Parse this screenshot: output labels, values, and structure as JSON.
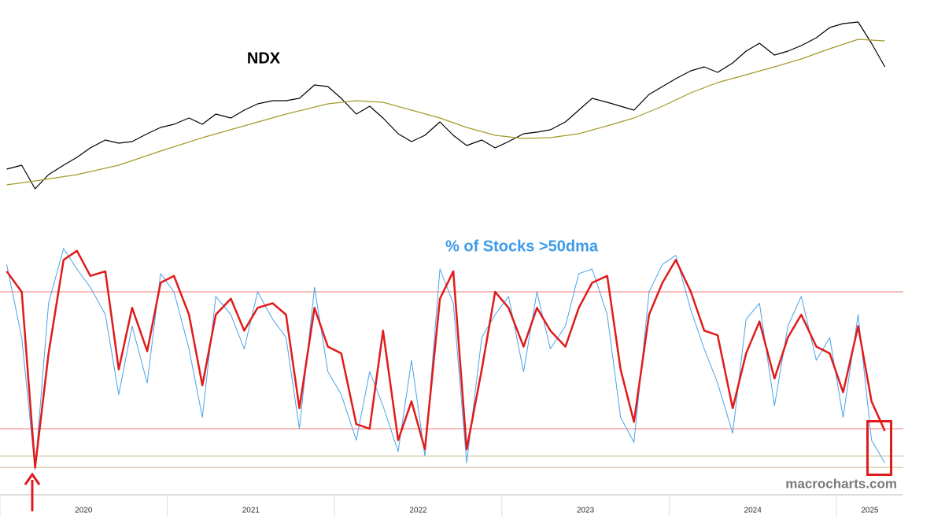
{
  "chart_data": [
    {
      "type": "line",
      "title": "NDX",
      "x": [
        2020.04,
        2020.13,
        2020.21,
        2020.29,
        2020.38,
        2020.46,
        2020.54,
        2020.63,
        2020.71,
        2020.79,
        2020.88,
        2020.96,
        2021.04,
        2021.13,
        2021.21,
        2021.29,
        2021.38,
        2021.46,
        2021.54,
        2021.63,
        2021.71,
        2021.79,
        2021.88,
        2021.96,
        2022.04,
        2022.13,
        2022.21,
        2022.29,
        2022.38,
        2022.46,
        2022.54,
        2022.63,
        2022.71,
        2022.79,
        2022.88,
        2022.96,
        2023.04,
        2023.13,
        2023.21,
        2023.29,
        2023.38,
        2023.46,
        2023.54,
        2023.63,
        2023.71,
        2023.79,
        2023.88,
        2023.96,
        2024.04,
        2024.13,
        2024.21,
        2024.29,
        2024.38,
        2024.46,
        2024.54,
        2024.63,
        2024.71,
        2024.79,
        2024.88,
        2024.96,
        2025.04,
        2025.13,
        2025.21,
        2025.29
      ],
      "series": [
        {
          "color": "#000000",
          "values": [
            9060,
            9400,
            7360,
            8584,
            9400,
            10080,
            10896,
            11576,
            11304,
            11440,
            12120,
            12664,
            12936,
            13480,
            12936,
            13820,
            13480,
            14160,
            14704,
            14976,
            14976,
            15180,
            16336,
            16200,
            15180,
            13820,
            14500,
            13480,
            12120,
            11440,
            11984,
            13140,
            11984,
            11100,
            11576,
            10896,
            11440,
            12120,
            12256,
            12460,
            13140,
            14160,
            15180,
            14840,
            14500,
            14160,
            15520,
            16200,
            16880,
            17560,
            17900,
            17424,
            18240,
            19260,
            19940,
            18920,
            19260,
            19736,
            20416,
            21300,
            21640,
            21776,
            19940,
            17900
          ]
        },
        {
          "color": "#a39a2a",
          "x": [
            2020.04,
            2020.21,
            2020.46,
            2020.71,
            2020.96,
            2021.21,
            2021.46,
            2021.71,
            2021.96,
            2022.13,
            2022.29,
            2022.46,
            2022.63,
            2022.79,
            2022.96,
            2023.13,
            2023.29,
            2023.46,
            2023.63,
            2023.79,
            2023.96,
            2024.13,
            2024.29,
            2024.46,
            2024.63,
            2024.79,
            2024.96,
            2025.13,
            2025.29
          ],
          "values": [
            7700,
            8040,
            8584,
            9400,
            10624,
            11780,
            12800,
            13820,
            14704,
            14976,
            14840,
            14160,
            13480,
            12664,
            11984,
            11712,
            11780,
            12120,
            12800,
            13480,
            14500,
            15656,
            16540,
            17220,
            17900,
            18580,
            19464,
            20280,
            20144
          ]
        }
      ],
      "xlim": [
        2020,
        2025.4
      ],
      "ylim": [
        6000,
        23000
      ]
    },
    {
      "type": "line",
      "title": "% of Stocks >50dma",
      "annotation": "macrocharts.com",
      "x": [
        2020.04,
        2020.13,
        2020.21,
        2020.29,
        2020.38,
        2020.46,
        2020.54,
        2020.63,
        2020.71,
        2020.79,
        2020.88,
        2020.96,
        2021.04,
        2021.13,
        2021.21,
        2021.29,
        2021.38,
        2021.46,
        2021.54,
        2021.63,
        2021.71,
        2021.79,
        2021.88,
        2021.96,
        2022.04,
        2022.13,
        2022.21,
        2022.29,
        2022.38,
        2022.46,
        2022.54,
        2022.63,
        2022.71,
        2022.79,
        2022.88,
        2022.96,
        2023.04,
        2023.13,
        2023.21,
        2023.29,
        2023.38,
        2023.46,
        2023.54,
        2023.63,
        2023.71,
        2023.79,
        2023.88,
        2023.96,
        2024.04,
        2024.13,
        2024.21,
        2024.29,
        2024.38,
        2024.46,
        2024.54,
        2024.63,
        2024.71,
        2024.79,
        2024.88,
        2024.96,
        2025.04,
        2025.13,
        2025.21,
        2025.29
      ],
      "series": [
        {
          "color": "#4aa3e8",
          "width": 1,
          "values": [
            92,
            60,
            2,
            75,
            99,
            90,
            82,
            70,
            35,
            65,
            40,
            88,
            80,
            55,
            25,
            78,
            70,
            55,
            80,
            68,
            60,
            20,
            82,
            45,
            35,
            15,
            45,
            30,
            10,
            50,
            8,
            90,
            75,
            5,
            60,
            70,
            78,
            45,
            80,
            55,
            65,
            88,
            90,
            70,
            25,
            14,
            80,
            92,
            96,
            72,
            55,
            40,
            18,
            68,
            75,
            30,
            65,
            78,
            50,
            60,
            25,
            70,
            15,
            5
          ]
        },
        {
          "color": "#e01b1b",
          "width": 2.5,
          "values": [
            89,
            80,
            3,
            53,
            94,
            98,
            87,
            89,
            46,
            73,
            54,
            84,
            87,
            70,
            39,
            70,
            77,
            63,
            73,
            75,
            70,
            29,
            73,
            56,
            53,
            22,
            20,
            63,
            15,
            32,
            11,
            77,
            89,
            11,
            46,
            80,
            73,
            56,
            73,
            63,
            56,
            73,
            84,
            87,
            46,
            23,
            70,
            84,
            94,
            80,
            63,
            61,
            29,
            53,
            67,
            42,
            60,
            70,
            56,
            53,
            36,
            65,
            32,
            19
          ]
        }
      ],
      "hlines": [
        {
          "value": 80,
          "color": "#f6a9a9"
        },
        {
          "value": 20,
          "color": "#f6a9a9"
        },
        {
          "value": 8,
          "color": "#ddd0b4"
        },
        {
          "value": 3,
          "color": "#ddd0b4"
        }
      ],
      "xlim": [
        2020,
        2025.4
      ],
      "ylim": [
        0,
        100
      ],
      "xticks": [
        2020,
        2021,
        2022,
        2023,
        2024,
        2025
      ]
    }
  ]
}
